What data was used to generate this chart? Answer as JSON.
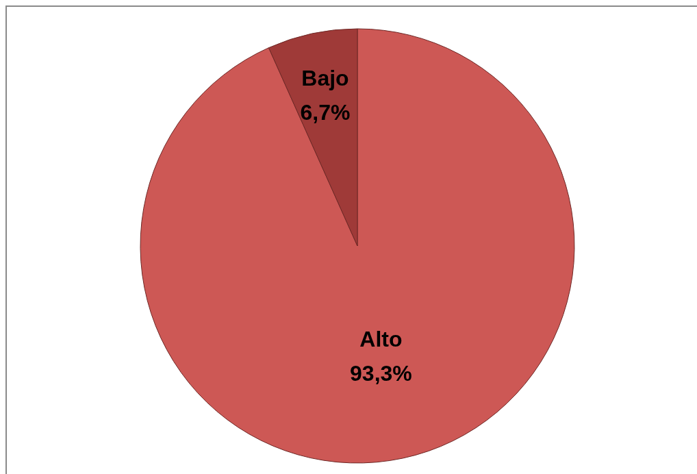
{
  "chart_data": {
    "type": "pie",
    "categories": [
      "Alto",
      "Bajo"
    ],
    "values": [
      93.3,
      6.7
    ],
    "colors": [
      "#cd5855",
      "#9f3a38"
    ],
    "value_labels": [
      "93,3%",
      "6,7%"
    ]
  }
}
